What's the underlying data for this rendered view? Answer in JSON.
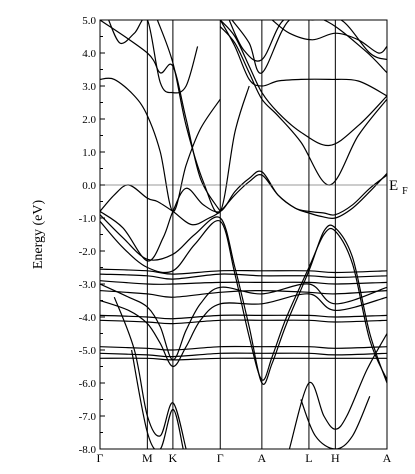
{
  "chart_data": {
    "type": "line",
    "title": "",
    "xlabel": "",
    "ylabel": "Energy (eV)",
    "ylim": [
      -8.0,
      5.0
    ],
    "ytick_step": 1.0,
    "ytick_labels": [
      "5.0",
      "4.0",
      "3.0",
      "2.0",
      "1.0",
      "0.0",
      "-1.0",
      "-2.0",
      "-3.0",
      "-4.0",
      "-5.0",
      "-6.0",
      "-7.0",
      "-8.0"
    ],
    "x_range": [
      0,
      1
    ],
    "kpoints": [
      {
        "label": "Γ",
        "x": 0.0
      },
      {
        "label": "M",
        "x": 0.165
      },
      {
        "label": "K",
        "x": 0.254
      },
      {
        "label": "Γ",
        "x": 0.419
      },
      {
        "label": "A",
        "x": 0.564
      },
      {
        "label": "L",
        "x": 0.728
      },
      {
        "label": "H",
        "x": 0.82
      },
      {
        "label": "A",
        "x": 1.0
      }
    ],
    "fermi_level": {
      "energy": 0.0,
      "label_main": "E",
      "label_sub": "F"
    },
    "grid": false,
    "series": [
      {
        "x": [
          0,
          0.05,
          0.1,
          0.165,
          0.2,
          0.254,
          0.32,
          0.38,
          0.419,
          0.47,
          0.52,
          0.564,
          0.62,
          0.68,
          0.728,
          0.77,
          0.82,
          0.88,
          0.94,
          1.0
        ],
        "y": [
          -0.8,
          -0.3,
          0.0,
          -0.4,
          -0.5,
          -0.8,
          -1.2,
          -1.0,
          -0.8,
          -0.3,
          0.1,
          0.3,
          -0.3,
          -0.7,
          -0.85,
          -0.95,
          -1.0,
          -0.7,
          -0.2,
          0.35
        ]
      },
      {
        "x": [
          0,
          0.08,
          0.165,
          0.22,
          0.254,
          0.3,
          0.36,
          0.419,
          0.47,
          0.52,
          0.564,
          0.62,
          0.68,
          0.728,
          0.78,
          0.82,
          0.88,
          0.94,
          1.0
        ],
        "y": [
          -0.8,
          -1.3,
          -2.3,
          -1.6,
          -0.8,
          -0.1,
          -0.6,
          -0.8,
          -0.2,
          0.2,
          0.4,
          -0.3,
          -0.7,
          -0.8,
          -0.85,
          -0.9,
          -0.6,
          -0.1,
          0.3
        ]
      },
      {
        "x": [
          0,
          0.08,
          0.165,
          0.254,
          0.33,
          0.419,
          0.47,
          0.52,
          0.564,
          0.6,
          0.65,
          0.728,
          0.78,
          0.82,
          0.88,
          0.94,
          1.0
        ],
        "y": [
          -0.9,
          -1.6,
          -2.25,
          -2.1,
          -1.5,
          -1.0,
          -2.5,
          -4.3,
          -6.0,
          -5.4,
          -4.2,
          -2.6,
          -1.4,
          -1.3,
          -2.2,
          -4.5,
          -6.0
        ]
      },
      {
        "x": [
          0,
          0.08,
          0.165,
          0.254,
          0.33,
          0.419,
          0.47,
          0.52,
          0.564,
          0.6,
          0.65,
          0.728,
          0.78,
          0.82,
          0.88,
          0.94,
          1.0
        ],
        "y": [
          -1.1,
          -1.9,
          -2.5,
          -2.6,
          -1.8,
          -1.1,
          -2.7,
          -4.6,
          -5.9,
          -5.2,
          -4.0,
          -2.5,
          -1.5,
          -1.4,
          -2.4,
          -4.7,
          -5.9
        ]
      },
      {
        "x": [
          0,
          0.165,
          0.254,
          0.419,
          0.564,
          0.728,
          0.82,
          1.0
        ],
        "y": [
          -2.55,
          -2.6,
          -2.7,
          -2.6,
          -2.6,
          -2.6,
          -2.65,
          -2.6
        ]
      },
      {
        "x": [
          0,
          0.165,
          0.254,
          0.419,
          0.564,
          0.728,
          0.82,
          1.0
        ],
        "y": [
          -2.7,
          -2.75,
          -2.85,
          -2.7,
          -2.75,
          -2.75,
          -2.8,
          -2.75
        ]
      },
      {
        "x": [
          0,
          0.165,
          0.254,
          0.419,
          0.564,
          0.728,
          0.82,
          1.0
        ],
        "y": [
          -2.9,
          -3.0,
          -3.0,
          -2.95,
          -2.95,
          -2.95,
          -3.0,
          -2.95
        ]
      },
      {
        "x": [
          0,
          0.165,
          0.254,
          0.419,
          0.564,
          0.728,
          0.82,
          1.0
        ],
        "y": [
          -3.2,
          -3.3,
          -3.4,
          -3.25,
          -3.2,
          -3.25,
          -3.3,
          -3.2
        ]
      },
      {
        "x": [
          0,
          0.165,
          0.254,
          0.419,
          0.564,
          0.728,
          0.82,
          1.0
        ],
        "y": [
          -3.95,
          -4.0,
          -4.05,
          -3.95,
          -3.95,
          -3.95,
          -4.0,
          -3.95
        ]
      },
      {
        "x": [
          0,
          0.165,
          0.254,
          0.419,
          0.564,
          0.728,
          0.82,
          1.0
        ],
        "y": [
          -4.1,
          -4.15,
          -4.2,
          -4.1,
          -4.1,
          -4.1,
          -4.15,
          -4.1
        ]
      },
      {
        "x": [
          0,
          0.165,
          0.254,
          0.419,
          0.564,
          0.728,
          0.82,
          1.0
        ],
        "y": [
          -4.9,
          -4.95,
          -5.0,
          -4.9,
          -4.9,
          -4.9,
          -4.95,
          -4.9
        ]
      },
      {
        "x": [
          0,
          0.165,
          0.254,
          0.419,
          0.564,
          0.728,
          0.82,
          1.0
        ],
        "y": [
          -5.1,
          -5.15,
          -5.2,
          -5.1,
          -5.1,
          -5.1,
          -5.15,
          -5.1
        ]
      },
      {
        "x": [
          0,
          0.165,
          0.254,
          0.419,
          0.564,
          0.728,
          0.82,
          1.0
        ],
        "y": [
          -5.25,
          -5.25,
          -5.3,
          -5.25,
          -5.25,
          -5.25,
          -5.25,
          -5.25
        ]
      },
      {
        "x": [
          0,
          0.1,
          0.165,
          0.21,
          0.254,
          0.3,
          0.35,
          0.419,
          0.564,
          0.728,
          0.82,
          1.0
        ],
        "y": [
          -3.0,
          -3.4,
          -3.7,
          -4.3,
          -5.3,
          -4.4,
          -3.6,
          -3.1,
          -3.3,
          -3.0,
          -3.6,
          -3.1
        ]
      },
      {
        "x": [
          0,
          0.1,
          0.165,
          0.21,
          0.254,
          0.3,
          0.35,
          0.419,
          0.564,
          0.728,
          0.82,
          1.0
        ],
        "y": [
          -3.5,
          -3.8,
          -4.2,
          -4.8,
          -5.5,
          -4.9,
          -4.1,
          -3.6,
          -3.6,
          -3.3,
          -3.8,
          -3.4
        ]
      },
      {
        "x": [
          0,
          0.05,
          0.12,
          0.165,
          0.21,
          0.254,
          0.3,
          0.35,
          0.419
        ],
        "y": [
          3.2,
          3.2,
          2.7,
          2.1,
          1.0,
          -0.8,
          0.6,
          1.7,
          2.6
        ]
      },
      {
        "x": [
          0,
          0.165,
          0.21,
          0.254,
          0.3,
          0.35,
          0.419
        ],
        "y": [
          5.0,
          4.0,
          3.4,
          3.6,
          2.0,
          0.2,
          -0.8
        ]
      },
      {
        "x": [
          0.03,
          0.07,
          0.12,
          0.165,
          0.21,
          0.254,
          0.3,
          0.34
        ],
        "y": [
          5.0,
          4.3,
          4.6,
          5.0,
          3.1,
          2.8,
          3.0,
          4.2
        ]
      },
      {
        "x": [
          0.2,
          0.254,
          0.3,
          0.36,
          0.419,
          0.47,
          0.52
        ],
        "y": [
          5.0,
          3.7,
          1.8,
          0.1,
          -0.8,
          1.6,
          3.0
        ]
      },
      {
        "x": [
          0.419,
          0.47,
          0.52,
          0.564,
          0.62,
          0.7,
          0.8,
          0.9,
          1.0
        ],
        "y": [
          5.0,
          4.2,
          3.2,
          3.0,
          3.15,
          3.2,
          3.2,
          3.15,
          2.7
        ]
      },
      {
        "x": [
          0.419,
          0.47,
          0.52,
          0.564,
          0.62,
          0.7,
          0.8,
          0.9,
          1.0
        ],
        "y": [
          5.0,
          4.5,
          3.6,
          2.8,
          2.2,
          1.6,
          1.2,
          1.8,
          2.7
        ]
      },
      {
        "x": [
          0.419,
          0.47,
          0.52,
          0.564,
          0.62,
          0.7,
          0.8,
          0.9,
          1.0
        ],
        "y": [
          4.8,
          4.3,
          3.4,
          2.6,
          2.1,
          1.3,
          0.0,
          1.5,
          2.6
        ]
      },
      {
        "x": [
          0.45,
          0.5,
          0.564,
          0.64,
          0.74,
          0.84,
          0.94,
          1.0
        ],
        "y": [
          5.0,
          4.1,
          3.8,
          5.0,
          5.0,
          5.0,
          4.0,
          3.8
        ]
      },
      {
        "x": [
          0.46,
          0.52,
          0.564,
          0.66,
          0.78,
          0.92,
          1.0
        ],
        "y": [
          5.0,
          4.3,
          3.4,
          5.0,
          5.0,
          4.1,
          3.4
        ]
      },
      {
        "x": [
          0.6,
          0.66,
          0.74,
          0.82,
          0.9,
          0.97,
          1.0
        ],
        "y": [
          5.0,
          4.6,
          4.4,
          4.6,
          4.4,
          4.0,
          4.2
        ]
      },
      {
        "x": [
          0.05,
          0.12,
          0.165,
          0.21,
          0.254,
          0.3
        ],
        "y": [
          -3.4,
          -5.0,
          -7.0,
          -7.6,
          -6.6,
          -8.0
        ]
      },
      {
        "x": [
          0.11,
          0.165,
          0.21,
          0.254,
          0.29
        ],
        "y": [
          -5.0,
          -7.5,
          -8.0,
          -6.8,
          -8.0
        ]
      },
      {
        "x": [
          0.66,
          0.728,
          0.78,
          0.82,
          0.86,
          0.93,
          1.0
        ],
        "y": [
          -8.0,
          -6.0,
          -7.0,
          -7.4,
          -7.0,
          -5.6,
          -4.5
        ]
      },
      {
        "x": [
          0.7,
          0.75,
          0.82,
          0.88,
          0.94
        ],
        "y": [
          -6.5,
          -7.6,
          -8.0,
          -7.6,
          -6.4
        ]
      }
    ]
  }
}
